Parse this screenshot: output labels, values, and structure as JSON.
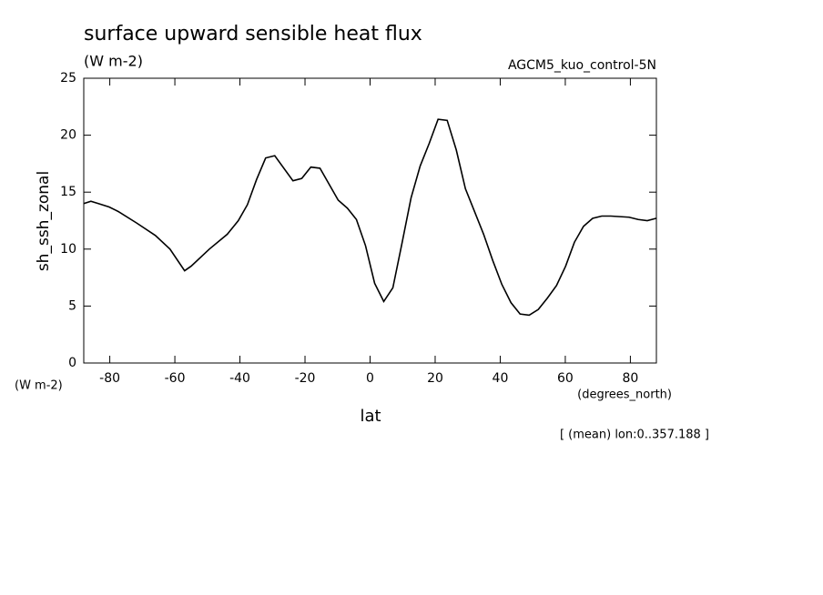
{
  "chart_data": {
    "type": "line",
    "title": "surface upward sensible heat flux",
    "subtitle": "(W m-2)",
    "dataset": "AGCM5_kuo_control-5N",
    "ylabel": "sh_ssh_zonal",
    "yunits": "(W m-2)",
    "xunits": "(degrees_north)",
    "xlabel": "lat",
    "note": "[ (mean) lon:0..357.188 ]",
    "xlim": [
      -88,
      88
    ],
    "ylim": [
      0,
      25
    ],
    "xticks": [
      -80,
      -60,
      -40,
      -20,
      0,
      20,
      40,
      60,
      80
    ],
    "yticks": [
      0,
      5,
      10,
      15,
      20,
      25
    ],
    "color": "#000000",
    "series": [
      {
        "name": "sh_ssh_zonal",
        "x": [
          -88,
          -85.8,
          -83.5,
          -80.2,
          -77.4,
          -71.8,
          -66,
          -61.5,
          -57,
          -55,
          -49.4,
          -43.9,
          -40.5,
          -37.7,
          -34.9,
          -32.1,
          -29.3,
          -23.7,
          -21.0,
          -18.2,
          -15.4,
          -9.8,
          -7.0,
          -4.2,
          -1.4,
          1.4,
          4.2,
          7.0,
          9.8,
          12.6,
          15.4,
          18.2,
          20.9,
          23.7,
          26.5,
          29.3,
          32.1,
          34.9,
          37.7,
          40.5,
          43.3,
          46.1,
          48.9,
          51.7,
          54.5,
          57.3,
          60.1,
          62.8,
          65.6,
          68.4,
          71.2,
          74.0,
          79.6,
          82.4,
          85.2,
          87.9
        ],
        "values": [
          14.0,
          14.2,
          14.0,
          13.7,
          13.3,
          12.3,
          11.2,
          10.0,
          8.1,
          8.5,
          10.0,
          11.3,
          12.5,
          13.9,
          16.1,
          18.0,
          18.2,
          16.0,
          16.2,
          17.2,
          17.1,
          14.3,
          13.6,
          12.6,
          10.3,
          7.0,
          5.4,
          6.6,
          10.5,
          14.5,
          17.3,
          19.3,
          21.4,
          21.3,
          18.7,
          15.3,
          13.3,
          11.3,
          9.0,
          6.9,
          5.3,
          4.3,
          4.2,
          4.7,
          5.7,
          6.8,
          8.5,
          10.6,
          12.0,
          12.7,
          12.9,
          12.9,
          12.8,
          12.6,
          12.5,
          12.7
        ]
      }
    ]
  }
}
